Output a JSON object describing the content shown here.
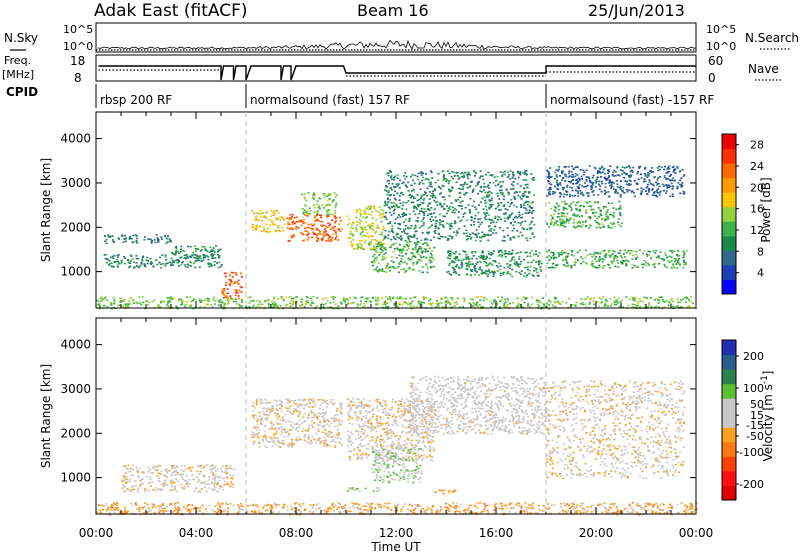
{
  "header": {
    "title": "Adak East (fitACF)",
    "beam": "Beam 16",
    "date": "25/Jun/2013"
  },
  "params": {
    "nsky_label": "N.Sky",
    "nsearch_label": "N.Search",
    "nsky_ticks": [
      "10^5",
      "10^0"
    ],
    "nsky_right_ticks": [
      "10^5",
      "10^0"
    ],
    "freq_label": "Freq.",
    "freq_unit": "[MHz]",
    "freq_ticks": [
      "18",
      "8"
    ],
    "nave_label": "Nave",
    "nave_ticks": [
      "60",
      "0"
    ],
    "cpid_label": "CPID",
    "cpid_segments": [
      {
        "label": "rbsp 200 RF",
        "start_hour": 0,
        "end_hour": 6
      },
      {
        "label": "normalsound (fast) 157 RF",
        "start_hour": 6,
        "end_hour": 18
      },
      {
        "label": "normalsound (fast) -157 RF",
        "start_hour": 18,
        "end_hour": 24
      }
    ]
  },
  "colors": {
    "power_scale": [
      "#0000ff",
      "#1e3fb4",
      "#2f6a8c",
      "#1a8a4a",
      "#3cb44a",
      "#8fd23c",
      "#ffc400",
      "#ff9a00",
      "#ff6a00",
      "#ff3000",
      "#ee0000"
    ],
    "velocity_scale": [
      "#1e2fb4",
      "#2a5f8c",
      "#2c7f50",
      "#5cbf30",
      "#c8c8c8",
      "#c8c8c8",
      "#ffa020",
      "#ff7a10",
      "#ff4000",
      "#ff1010",
      "#e00000"
    ]
  },
  "chart_data": [
    {
      "type": "heatmap",
      "name": "Power panel",
      "ylabel": "Slant Range [km]",
      "xlabel": "Time UT",
      "x_ticks": [
        "00:00",
        "04:00",
        "08:00",
        "12:00",
        "16:00",
        "20:00",
        "00:00"
      ],
      "x_range_hours": [
        0,
        24
      ],
      "y_ticks": [
        1000,
        2000,
        3000,
        4000
      ],
      "ylim": [
        180,
        4600
      ],
      "colorbar_label": "Power [dB]",
      "colorbar_ticks": [
        28,
        24,
        20,
        16,
        12,
        8,
        4
      ],
      "colorbar_range": [
        0,
        30
      ],
      "features": [
        {
          "t": [
            0.3,
            3.0
          ],
          "range": [
            1650,
            1850
          ],
          "value": 8
        },
        {
          "t": [
            0.3,
            5.0
          ],
          "range": [
            1100,
            1400
          ],
          "value": 9
        },
        {
          "t": [
            3.0,
            5.0
          ],
          "range": [
            1300,
            1600
          ],
          "value": 10
        },
        {
          "t": [
            5.0,
            5.8
          ],
          "range": [
            400,
            1000
          ],
          "value": 24
        },
        {
          "t": [
            6.2,
            7.5
          ],
          "range": [
            1900,
            2400
          ],
          "value": 18
        },
        {
          "t": [
            7.6,
            9.8
          ],
          "range": [
            1700,
            2300
          ],
          "value": 24
        },
        {
          "t": [
            8.2,
            9.6
          ],
          "range": [
            2300,
            2800
          ],
          "value": 14
        },
        {
          "t": [
            10.0,
            11.5
          ],
          "range": [
            1500,
            2500
          ],
          "value": 16
        },
        {
          "t": [
            11.0,
            13.5
          ],
          "range": [
            1000,
            1700
          ],
          "value": 12
        },
        {
          "t": [
            11.5,
            17.5
          ],
          "range": [
            1700,
            3300
          ],
          "value": 9
        },
        {
          "t": [
            14.0,
            17.8
          ],
          "range": [
            900,
            1500
          ],
          "value": 10
        },
        {
          "t": [
            18.0,
            21.0
          ],
          "range": [
            2000,
            2600
          ],
          "value": 12
        },
        {
          "t": [
            18.0,
            23.6
          ],
          "range": [
            1100,
            1500
          ],
          "value": 12
        },
        {
          "t": [
            18.0,
            23.5
          ],
          "range": [
            2700,
            3400
          ],
          "value": 6
        },
        {
          "t": [
            0.0,
            24.0
          ],
          "range": [
            180,
            450
          ],
          "value": 14
        }
      ]
    },
    {
      "type": "heatmap",
      "name": "Velocity panel",
      "ylabel": "Slant Range [km]",
      "xlabel": "Time UT",
      "x_ticks": [
        "00:00",
        "04:00",
        "08:00",
        "12:00",
        "16:00",
        "20:00",
        "00:00"
      ],
      "x_range_hours": [
        0,
        24
      ],
      "y_ticks": [
        1000,
        2000,
        3000,
        4000
      ],
      "ylim": [
        180,
        4600
      ],
      "colorbar_label": "Velocity [m s^-1]",
      "colorbar_ticks": [
        200,
        100,
        50,
        15,
        -15,
        -50,
        -100,
        -200
      ],
      "colorbar_range": [
        -250,
        250
      ],
      "features": [
        {
          "t": [
            1.0,
            5.5
          ],
          "range": [
            700,
            1300
          ],
          "value": 0
        },
        {
          "t": [
            6.2,
            9.8
          ],
          "range": [
            1700,
            2800
          ],
          "value": 0
        },
        {
          "t": [
            10.0,
            13.5
          ],
          "range": [
            1400,
            2800
          ],
          "value": 0
        },
        {
          "t": [
            11.0,
            13.0
          ],
          "range": [
            900,
            1700
          ],
          "value": 60
        },
        {
          "t": [
            10.0,
            11.5
          ],
          "range": [
            700,
            800
          ],
          "value": 60
        },
        {
          "t": [
            13.5,
            14.5
          ],
          "range": [
            650,
            750
          ],
          "value": -60
        },
        {
          "t": [
            12.5,
            18.0
          ],
          "range": [
            2000,
            3300
          ],
          "value": 20
        },
        {
          "t": [
            18.0,
            23.5
          ],
          "range": [
            1000,
            3200
          ],
          "value": -5
        },
        {
          "t": [
            0.0,
            24.0
          ],
          "range": [
            180,
            450
          ],
          "value": -40
        }
      ]
    }
  ]
}
